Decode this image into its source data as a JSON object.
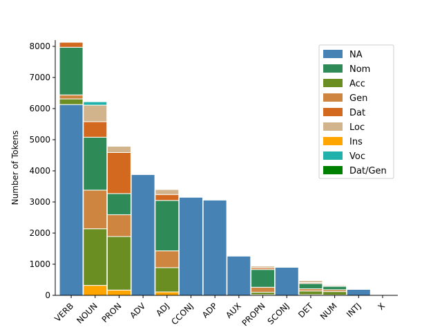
{
  "chart_data": {
    "type": "bar",
    "stacked": true,
    "ylabel": "Number of Tokens",
    "xlabel": "",
    "ylim": [
      0,
      8200
    ],
    "yticks": [
      0,
      1000,
      2000,
      3000,
      4000,
      5000,
      6000,
      7000,
      8000
    ],
    "grid": false,
    "legend_position": "top-right",
    "categories": [
      "VERB",
      "NOUN",
      "PRON",
      "ADV",
      "ADJ",
      "CCONJ",
      "ADP",
      "AUX",
      "PROPN",
      "SCONJ",
      "DET",
      "NUM",
      "INTJ",
      "X"
    ],
    "stack_order": [
      "Ins",
      "Acc",
      "Gen",
      "Nom",
      "Dat",
      "Loc",
      "Voc",
      "Dat/Gen"
    ],
    "series": [
      {
        "name": "NA",
        "color": "#4682b4",
        "values": [
          6130,
          0,
          0,
          3880,
          0,
          3150,
          3060,
          1260,
          0,
          900,
          0,
          0,
          190,
          15
        ]
      },
      {
        "name": "Nom",
        "color": "#2e8b57",
        "values": [
          1530,
          1700,
          680,
          0,
          1620,
          0,
          0,
          0,
          570,
          0,
          170,
          110,
          0,
          0
        ]
      },
      {
        "name": "Acc",
        "color": "#6b8e23",
        "values": [
          180,
          1820,
          1720,
          0,
          780,
          0,
          0,
          0,
          80,
          0,
          120,
          110,
          0,
          0
        ]
      },
      {
        "name": "Gen",
        "color": "#cd853f",
        "values": [
          130,
          1240,
          700,
          0,
          540,
          0,
          0,
          0,
          160,
          0,
          70,
          60,
          0,
          0
        ]
      },
      {
        "name": "Dat",
        "color": "#d2691e",
        "values": [
          160,
          500,
          1320,
          0,
          190,
          0,
          0,
          0,
          50,
          0,
          30,
          20,
          0,
          0
        ]
      },
      {
        "name": "Loc",
        "color": "#d2b48c",
        "values": [
          0,
          530,
          200,
          0,
          160,
          0,
          0,
          0,
          60,
          0,
          60,
          30,
          0,
          0
        ]
      },
      {
        "name": "Ins",
        "color": "#ffa500",
        "values": [
          0,
          320,
          170,
          0,
          110,
          0,
          0,
          0,
          20,
          0,
          20,
          10,
          0,
          0
        ]
      },
      {
        "name": "Voc",
        "color": "#20b2aa",
        "values": [
          0,
          110,
          0,
          0,
          20,
          0,
          0,
          0,
          20,
          0,
          0,
          0,
          0,
          0
        ]
      },
      {
        "name": "Dat/Gen",
        "color": "#008000",
        "values": [
          0,
          0,
          0,
          0,
          0,
          0,
          0,
          0,
          0,
          0,
          0,
          0,
          0,
          0
        ]
      }
    ],
    "na_position": "bottom-for-pos-without-case",
    "verb_na_at_bottom": true
  }
}
